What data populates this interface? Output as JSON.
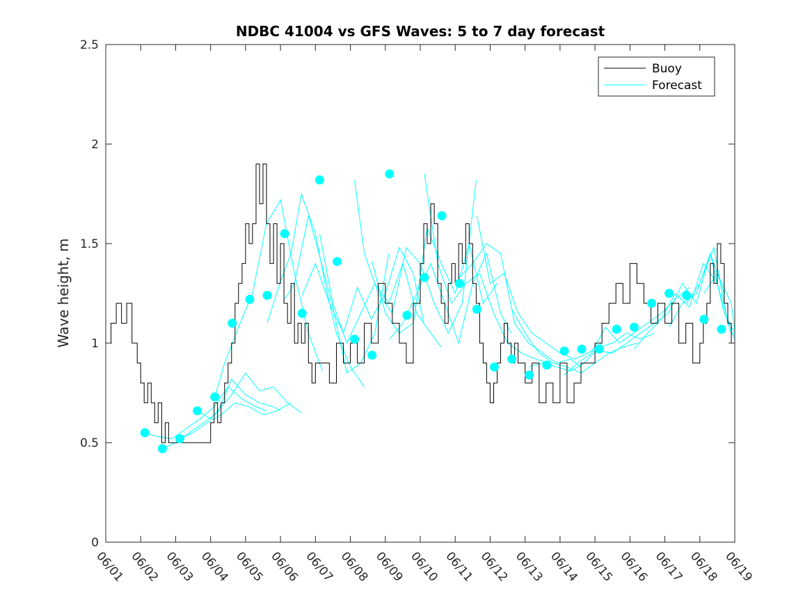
{
  "chart_data": {
    "type": "line",
    "title": "NDBC 41004 vs GFS Waves: 5 to 7 day forecast",
    "xlabel": "",
    "ylabel": "Wave height, m",
    "xlim": [
      0,
      18
    ],
    "ylim": [
      0,
      2.5
    ],
    "x_ticks": [
      0,
      1,
      2,
      3,
      4,
      5,
      6,
      7,
      8,
      9,
      10,
      11,
      12,
      13,
      14,
      15,
      16,
      17,
      18
    ],
    "x_tick_labels": [
      "06/01",
      "06/02",
      "06/03",
      "06/04",
      "06/05",
      "06/06",
      "06/07",
      "06/08",
      "06/09",
      "06/10",
      "06/11",
      "06/12",
      "06/13",
      "06/14",
      "06/15",
      "06/16",
      "06/17",
      "06/18",
      "06/19"
    ],
    "y_ticks": [
      0,
      0.5,
      1,
      1.5,
      2,
      2.5
    ],
    "y_tick_labels": [
      "0",
      "0.5",
      "1",
      "1.5",
      "2",
      "2.5"
    ],
    "legend": {
      "position": "top-right",
      "entries": [
        {
          "label": "Buoy",
          "color": "#000000"
        },
        {
          "label": "Forecast",
          "color": "#00ffff"
        }
      ]
    },
    "colors": {
      "buoy": "#000000",
      "forecast": "#00ffff",
      "axes": "#262626"
    },
    "buoy": {
      "name": "Buoy",
      "x": [
        0,
        0.15,
        0.3,
        0.45,
        0.6,
        0.75,
        0.9,
        1,
        1.1,
        1.2,
        1.3,
        1.4,
        1.5,
        1.6,
        1.7,
        1.8,
        1.9,
        2,
        2.2,
        2.4,
        2.6,
        2.8,
        3,
        3.1,
        3.2,
        3.3,
        3.4,
        3.5,
        3.6,
        3.7,
        3.8,
        3.9,
        4,
        4.1,
        4.2,
        4.3,
        4.4,
        4.5,
        4.6,
        4.7,
        4.8,
        4.9,
        5,
        5.1,
        5.2,
        5.3,
        5.4,
        5.5,
        5.6,
        5.7,
        5.8,
        5.9,
        6,
        6.2,
        6.4,
        6.6,
        6.8,
        7,
        7.2,
        7.4,
        7.6,
        7.8,
        8,
        8.2,
        8.4,
        8.6,
        8.8,
        9,
        9.1,
        9.2,
        9.3,
        9.4,
        9.5,
        9.6,
        9.7,
        9.8,
        9.9,
        10,
        10.1,
        10.2,
        10.3,
        10.4,
        10.5,
        10.6,
        10.7,
        10.8,
        10.9,
        11,
        11.1,
        11.2,
        11.3,
        11.4,
        11.5,
        11.6,
        11.7,
        11.8,
        11.9,
        12,
        12.2,
        12.4,
        12.6,
        12.8,
        13,
        13.2,
        13.4,
        13.6,
        13.8,
        14,
        14.2,
        14.4,
        14.6,
        14.8,
        15,
        15.2,
        15.4,
        15.6,
        15.8,
        16,
        16.2,
        16.4,
        16.6,
        16.8,
        17,
        17.1,
        17.2,
        17.3,
        17.4,
        17.5,
        17.6,
        17.7,
        17.8,
        17.9,
        18
      ],
      "values": [
        1.0,
        1.1,
        1.2,
        1.1,
        1.2,
        1.0,
        0.9,
        0.8,
        0.7,
        0.8,
        0.7,
        0.6,
        0.7,
        0.5,
        0.6,
        0.5,
        0.5,
        0.5,
        0.5,
        0.5,
        0.5,
        0.5,
        0.6,
        0.7,
        0.6,
        0.7,
        0.8,
        0.9,
        1.0,
        1.2,
        1.3,
        1.4,
        1.6,
        1.5,
        1.6,
        1.9,
        1.7,
        1.9,
        1.6,
        1.4,
        1.6,
        1.3,
        1.5,
        1.2,
        1.1,
        1.3,
        1.0,
        1.1,
        1.0,
        1.1,
        0.9,
        0.8,
        0.9,
        0.9,
        0.8,
        1.0,
        0.9,
        1.0,
        0.9,
        1.1,
        1.0,
        1.3,
        1.2,
        1.1,
        1.0,
        0.9,
        1.2,
        1.4,
        1.6,
        1.5,
        1.7,
        1.6,
        1.3,
        1.2,
        1.1,
        1.3,
        1.4,
        1.3,
        1.5,
        1.4,
        1.6,
        1.5,
        1.3,
        1.2,
        1.0,
        0.9,
        0.8,
        0.7,
        0.8,
        0.9,
        1.0,
        1.1,
        1.0,
        0.9,
        1.0,
        0.9,
        0.9,
        0.8,
        0.9,
        0.7,
        0.8,
        0.7,
        0.9,
        0.7,
        0.8,
        0.9,
        0.9,
        1.0,
        1.1,
        1.2,
        1.3,
        1.2,
        1.4,
        1.3,
        1.2,
        1.1,
        1.2,
        1.1,
        1.2,
        1.0,
        1.1,
        0.9,
        1.0,
        1.1,
        1.2,
        1.4,
        1.3,
        1.5,
        1.4,
        1.2,
        1.1,
        1.0,
        1.05
      ]
    },
    "forecast_markers": {
      "name": "Forecast",
      "x": [
        1.12,
        1.62,
        2.12,
        2.62,
        3.12,
        3.62,
        4.12,
        4.62,
        5.12,
        5.62,
        6.12,
        6.62,
        7.12,
        7.62,
        8.12,
        8.62,
        9.12,
        9.62,
        10.12,
        10.62,
        11.12,
        11.62,
        12.12,
        12.62,
        13.12,
        13.62,
        14.12,
        14.62,
        15.12,
        15.62,
        16.12,
        16.62,
        17.12,
        17.62
      ],
      "values": [
        0.55,
        0.47,
        0.52,
        0.66,
        0.73,
        1.1,
        1.22,
        1.24,
        1.55,
        1.15,
        1.82,
        1.41,
        1.02,
        0.94,
        1.85,
        1.14,
        1.33,
        1.64,
        1.3,
        1.17,
        0.88,
        0.92,
        0.84,
        0.89,
        0.96,
        0.97,
        0.97,
        1.07,
        1.08,
        1.2,
        1.25,
        1.24,
        1.12,
        1.07
      ]
    },
    "forecast_runs": [
      {
        "x": [
          1.12,
          1.5,
          1.9,
          2.3,
          2.7,
          3.1,
          3.5,
          3.9,
          4.3,
          4.6
        ],
        "values": [
          0.55,
          0.53,
          0.52,
          0.57,
          0.62,
          0.68,
          0.78,
          0.72,
          0.68,
          0.66
        ]
      },
      {
        "x": [
          1.62,
          2.0,
          2.4,
          2.8,
          3.2,
          3.6,
          4.0,
          4.4,
          4.8,
          5.0
        ],
        "values": [
          0.47,
          0.5,
          0.55,
          0.6,
          0.65,
          0.82,
          0.74,
          0.7,
          0.68,
          0.66
        ]
      },
      {
        "x": [
          2.12,
          2.5,
          2.9,
          3.3,
          3.7,
          4.1,
          4.5,
          4.9,
          5.3
        ],
        "values": [
          0.52,
          0.55,
          0.6,
          0.64,
          0.7,
          0.68,
          0.64,
          0.66,
          0.7
        ]
      },
      {
        "x": [
          2.62,
          3.0,
          3.3,
          3.6,
          4.0,
          4.4,
          4.8,
          5.2,
          5.6
        ],
        "values": [
          0.66,
          0.62,
          0.68,
          0.74,
          0.85,
          0.76,
          0.78,
          0.7,
          0.65
        ]
      },
      {
        "x": [
          3.12,
          3.4,
          3.8,
          4.2,
          4.6,
          5.0,
          5.4,
          5.8,
          6.2
        ],
        "values": [
          0.73,
          0.9,
          1.08,
          1.25,
          1.6,
          1.72,
          1.35,
          1.05,
          0.86
        ]
      },
      {
        "x": [
          4.62,
          5.0,
          5.3,
          5.6,
          6.0,
          6.3,
          6.6,
          7.0,
          7.4
        ],
        "values": [
          1.1,
          1.31,
          1.45,
          1.75,
          1.55,
          1.28,
          1.05,
          0.88,
          0.78
        ]
      },
      {
        "x": [
          5.12,
          5.4,
          5.8,
          6.1,
          6.5,
          6.9,
          7.3,
          7.7,
          8.1
        ],
        "values": [
          1.22,
          1.3,
          1.64,
          1.45,
          1.18,
          0.85,
          0.9,
          1.05,
          1.45
        ]
      },
      {
        "x": [
          5.62,
          6.0,
          6.4,
          6.8,
          7.2,
          7.6,
          8.0,
          8.4,
          8.8,
          9.1
        ],
        "values": [
          1.24,
          1.4,
          1.2,
          1.05,
          1.28,
          1.12,
          1.25,
          1.48,
          1.35,
          1.1
        ]
      },
      {
        "x": [
          6.12,
          6.5,
          6.9,
          7.3,
          7.7,
          8.1,
          8.5,
          8.9,
          9.3,
          9.6
        ],
        "values": [
          1.55,
          1.2,
          1.0,
          1.15,
          1.3,
          1.2,
          1.4,
          1.15,
          1.05,
          0.98
        ]
      },
      {
        "x": [
          7.12,
          7.4,
          7.8,
          8.2,
          8.6,
          9.0,
          9.4,
          9.8,
          10.2,
          10.6
        ],
        "values": [
          1.82,
          1.45,
          1.25,
          1.15,
          1.48,
          1.4,
          1.2,
          1.05,
          1.2,
          1.82
        ]
      },
      {
        "x": [
          7.62,
          8.0,
          8.4,
          8.8,
          9.2,
          9.6,
          10.0,
          10.4,
          10.8,
          11.2
        ],
        "values": [
          1.41,
          1.15,
          1.05,
          1.1,
          1.58,
          1.4,
          1.25,
          1.5,
          1.2,
          1.3
        ]
      },
      {
        "x": [
          8.12,
          8.5,
          8.9,
          9.3,
          9.7,
          10.1,
          10.5,
          10.9,
          11.3,
          11.6
        ],
        "values": [
          1.02,
          1.1,
          1.25,
          1.4,
          1.2,
          1.0,
          1.3,
          1.45,
          1.15,
          1.05
        ]
      },
      {
        "x": [
          9.12,
          9.5,
          9.9,
          10.3,
          10.7,
          11.1,
          11.5,
          11.9,
          12.3,
          12.7
        ],
        "values": [
          1.85,
          1.4,
          1.2,
          1.3,
          1.35,
          1.15,
          1.0,
          0.95,
          0.92,
          0.9
        ]
      },
      {
        "x": [
          10.12,
          10.5,
          10.9,
          11.3,
          11.7,
          12.1,
          12.5,
          12.9,
          13.3,
          13.6
        ],
        "values": [
          1.33,
          1.4,
          1.5,
          1.45,
          1.1,
          1.0,
          0.95,
          0.9,
          0.92,
          0.88
        ]
      },
      {
        "x": [
          10.62,
          11.0,
          11.4,
          11.8,
          12.2,
          12.6,
          13.0,
          13.4,
          13.8,
          14.2
        ],
        "values": [
          1.64,
          1.3,
          1.35,
          1.15,
          1.05,
          1.0,
          0.95,
          0.92,
          0.95,
          1.0
        ]
      },
      {
        "x": [
          11.62,
          12.0,
          12.4,
          12.8,
          13.2,
          13.6,
          14.0,
          14.4,
          14.8,
          15.2
        ],
        "values": [
          1.17,
          1.05,
          0.95,
          0.9,
          0.88,
          0.85,
          0.9,
          0.95,
          0.98,
          1.0
        ]
      },
      {
        "x": [
          12.12,
          12.5,
          12.9,
          13.3,
          13.7,
          14.1,
          14.5,
          14.9,
          15.3,
          15.7
        ],
        "values": [
          0.88,
          0.9,
          0.88,
          0.86,
          0.9,
          0.98,
          1.0,
          1.05,
          1.02,
          1.05
        ]
      },
      {
        "x": [
          13.12,
          13.5,
          13.9,
          14.3,
          14.7,
          15.1,
          15.5,
          15.9,
          16.3,
          16.7
        ],
        "values": [
          0.84,
          0.9,
          0.95,
          1.08,
          1.0,
          1.05,
          1.1,
          1.15,
          1.22,
          1.28
        ]
      },
      {
        "x": [
          14.12,
          14.5,
          14.9,
          15.3,
          15.7,
          16.1,
          16.5,
          16.9,
          17.3,
          17.7
        ],
        "values": [
          0.96,
          0.95,
          1.0,
          1.05,
          1.1,
          1.15,
          1.3,
          1.2,
          1.45,
          1.25
        ]
      },
      {
        "x": [
          15.12,
          15.5,
          15.9,
          16.3,
          16.7,
          17.1,
          17.5,
          17.9,
          18.0
        ],
        "values": [
          0.97,
          1.05,
          1.12,
          1.25,
          1.18,
          1.4,
          1.3,
          1.05,
          1.04
        ]
      },
      {
        "x": [
          16.12,
          16.5,
          16.9,
          17.3,
          17.7,
          18.0
        ],
        "values": [
          1.08,
          1.2,
          1.25,
          1.45,
          1.15,
          1.05
        ]
      },
      {
        "x": [
          16.62,
          17.0,
          17.4,
          17.8,
          18.0
        ],
        "values": [
          1.2,
          1.3,
          1.48,
          1.1,
          1.02
        ]
      },
      {
        "x": [
          17.12,
          17.5,
          17.9,
          18.0
        ],
        "values": [
          1.25,
          1.35,
          1.2,
          1.06
        ]
      }
    ]
  }
}
